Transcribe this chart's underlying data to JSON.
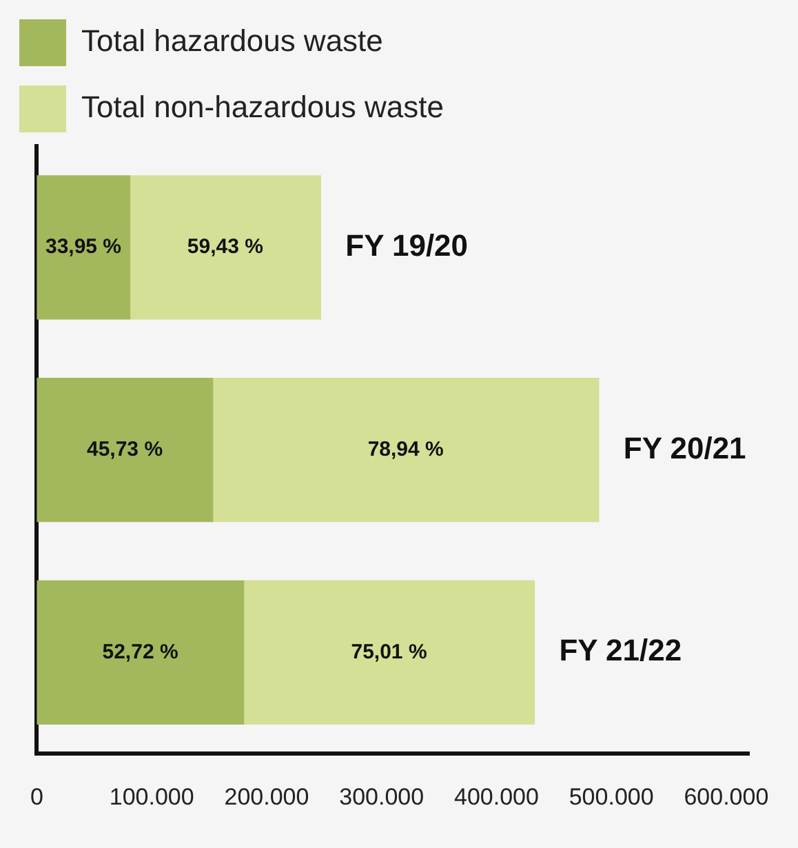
{
  "chart_data": {
    "type": "bar",
    "orientation": "horizontal",
    "stacked": true,
    "legend": "top left",
    "tick_labels": "x",
    "categories": [
      "FY 19/20",
      "FY 20/21",
      "FY 21/22"
    ],
    "series": [
      {
        "name": "Total hazardous waste",
        "color": "#a3b85c",
        "values": [
          81000,
          153000,
          180000
        ]
      },
      {
        "name": "Total non-hazardous waste",
        "color": "#d3e096",
        "values": [
          166000,
          336000,
          253000
        ]
      }
    ],
    "annotations": [
      "33,95 %",
      "45,73 %",
      "52,72 %",
      "59,43 %",
      "78,94 %",
      "75,01 %"
    ],
    "xlim": [
      0,
      620000
    ],
    "xticks": [
      0,
      {
        "value": 100000,
        "label": "100.000"
      },
      {
        "value": 200000,
        "label": "200.000"
      },
      {
        "value": 300000,
        "label": "300.000"
      },
      {
        "value": 400000,
        "label": "400.000"
      },
      {
        "value": 500000,
        "label": "500.000"
      },
      {
        "value": 600000,
        "label": "600.000"
      }
    ]
  }
}
